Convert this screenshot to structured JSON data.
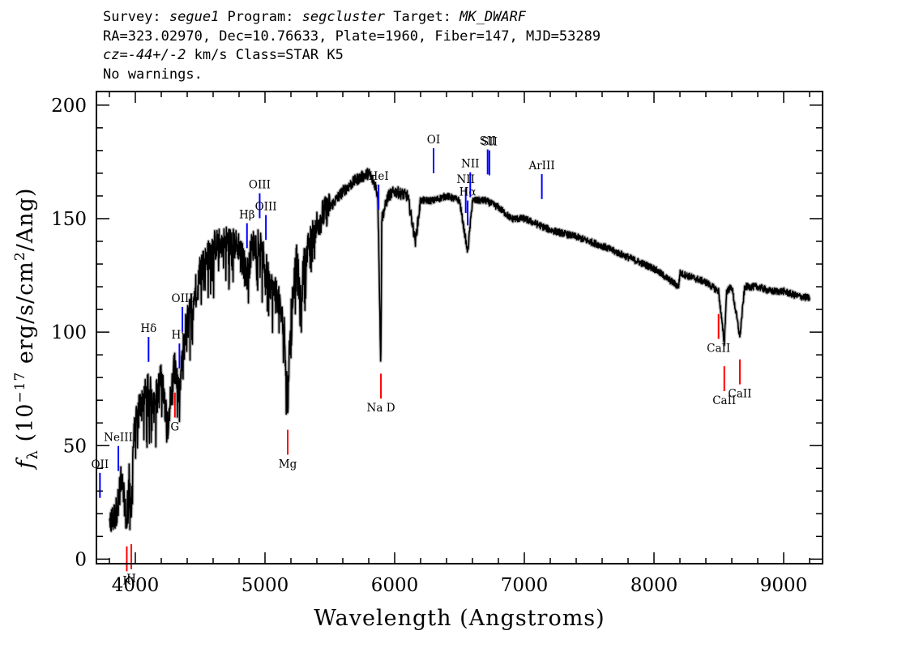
{
  "header": {
    "line1": {
      "survey_label": "Survey: ",
      "survey": "segue1",
      "program_label": " Program: ",
      "program": "segcluster",
      "target_label": " Target: ",
      "target": "MK_DWARF"
    },
    "line2": "RA=323.02970, Dec=10.76633, Plate=1960, Fiber=147, MJD=53289",
    "line3": {
      "cz": "cz=-44+/-2",
      "rest": " km/s Class=STAR K5"
    },
    "line4": "No warnings."
  },
  "chart_data": {
    "type": "line",
    "xlabel": "Wavelength (Angstroms)",
    "ylabel": "f_λ (10^-17 erg/s/cm^2/Ang)",
    "xlim": [
      3700,
      9300
    ],
    "ylim": [
      -2,
      206
    ],
    "xticks": [
      4000,
      5000,
      6000,
      7000,
      8000,
      9000
    ],
    "yticks": [
      0,
      50,
      100,
      150,
      200
    ],
    "series": [
      {
        "color": "#000000",
        "error_color": "#bbbbbb",
        "x": [
          3800,
          3850,
          3900,
          3933,
          3950,
          3968,
          3980,
          4000,
          4050,
          4101,
          4150,
          4200,
          4250,
          4300,
          4340,
          4380,
          4450,
          4500,
          4550,
          4600,
          4700,
          4800,
          4861,
          4900,
          4950,
          5000,
          5050,
          5100,
          5150,
          5175,
          5200,
          5250,
          5270,
          5300,
          5350,
          5400,
          5450,
          5500,
          5600,
          5700,
          5800,
          5850,
          5870,
          5880,
          5893,
          5900,
          5950,
          6000,
          6100,
          6160,
          6200,
          6300,
          6400,
          6500,
          6563,
          6600,
          6700,
          6800,
          6900,
          7000,
          7200,
          7400,
          7600,
          7800,
          8000,
          8190,
          8200,
          8300,
          8400,
          8498,
          8542,
          8560,
          8600,
          8662,
          8700,
          8800,
          8900,
          9000,
          9100,
          9200
        ],
        "y": [
          15,
          20,
          38,
          14,
          42,
          14,
          45,
          62,
          70,
          75,
          70,
          80,
          60,
          85,
          72,
          100,
          115,
          128,
          132,
          138,
          140,
          138,
          125,
          138,
          140,
          130,
          120,
          115,
          100,
          67,
          110,
          135,
          110,
          130,
          140,
          148,
          152,
          155,
          162,
          167,
          170,
          165,
          160,
          130,
          82,
          150,
          160,
          162,
          160,
          140,
          158,
          158,
          160,
          158,
          135,
          158,
          158,
          155,
          150,
          150,
          145,
          142,
          138,
          133,
          128,
          120,
          126,
          124,
          122,
          118,
          95,
          118,
          120,
          98,
          120,
          120,
          118,
          118,
          116,
          115
        ]
      }
    ],
    "emission_lines": [
      {
        "label": "OII",
        "wave": 3727
      },
      {
        "label": "NeIII",
        "wave": 3869
      },
      {
        "label": "Hδ",
        "wave": 4102
      },
      {
        "label": "Hγ",
        "wave": 4340
      },
      {
        "label": "OIII",
        "wave": 4363
      },
      {
        "label": "Hβ",
        "wave": 4861
      },
      {
        "label": "OIII",
        "wave": 4959
      },
      {
        "label": "OIII",
        "wave": 5007
      },
      {
        "label": "HeI",
        "wave": 5876
      },
      {
        "label": "OI",
        "wave": 6300
      },
      {
        "label": "NII",
        "wave": 6548
      },
      {
        "label": "Hα",
        "wave": 6563
      },
      {
        "label": "NII",
        "wave": 6583
      },
      {
        "label": "SII",
        "wave": 6717
      },
      {
        "label": "SII",
        "wave": 6731
      },
      {
        "label": "ArIII",
        "wave": 7135
      }
    ],
    "absorption_lines": [
      {
        "label": "K",
        "wave": 3934
      },
      {
        "label": "H",
        "wave": 3969
      },
      {
        "label": "G",
        "wave": 4305
      },
      {
        "label": "Mg",
        "wave": 5175
      },
      {
        "label": "Na D",
        "wave": 5894
      },
      {
        "label": "CaII",
        "wave": 8498
      },
      {
        "label": "CaII",
        "wave": 8542
      },
      {
        "label": "CaII",
        "wave": 8662
      }
    ],
    "emission_color": "#0000ff",
    "absorption_color": "#ff0000"
  }
}
